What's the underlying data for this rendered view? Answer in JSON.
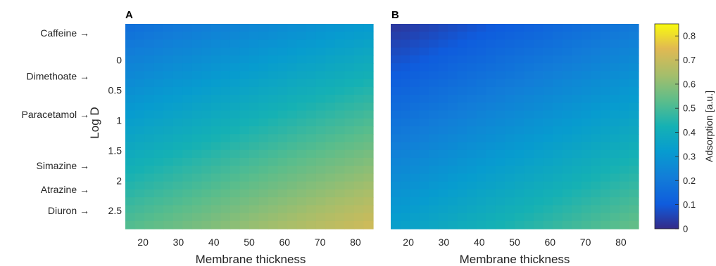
{
  "chart_data": [
    {
      "type": "heatmap",
      "panel_label": "A",
      "xlabel": "Membrane thickness",
      "ylabel": "Log D",
      "xlim": [
        15,
        85
      ],
      "ylim": [
        -0.6,
        2.8
      ],
      "y_reversed": true,
      "xticks": [
        20,
        30,
        40,
        50,
        60,
        70,
        80
      ],
      "yticks": [
        0,
        0.5,
        1,
        1.5,
        2,
        2.5
      ],
      "corner_values": {
        "top_left": 0.16,
        "top_right": 0.32,
        "bottom_left": 0.52,
        "bottom_right": 0.72
      }
    },
    {
      "type": "heatmap",
      "panel_label": "B",
      "xlabel": "Membrane thickness",
      "ylabel": "",
      "xlim": [
        15,
        85
      ],
      "ylim": [
        -0.6,
        2.8
      ],
      "y_reversed": true,
      "xticks": [
        20,
        30,
        40,
        50,
        60,
        70,
        80
      ],
      "yticks": [],
      "corner_values": {
        "top_left": 0.02,
        "top_right": 0.2,
        "bottom_left": 0.34,
        "bottom_right": 0.55
      }
    }
  ],
  "colorbar": {
    "label": "Adsorption [a.u.]",
    "range": [
      0,
      0.85
    ],
    "ticks": [
      0,
      0.1,
      0.2,
      0.3,
      0.4,
      0.5,
      0.6,
      0.7,
      0.8
    ],
    "colormap": "parula"
  },
  "annotations": [
    {
      "text": "Caffeine →",
      "logD": -0.45
    },
    {
      "text": "Dimethoate →",
      "logD": 0.27
    },
    {
      "text": "Paracetamol →",
      "logD": 0.9
    },
    {
      "text": "Simazine →",
      "logD": 1.75
    },
    {
      "text": "Atrazine →",
      "logD": 2.15
    },
    {
      "text": "Diuron →",
      "logD": 2.5
    }
  ]
}
